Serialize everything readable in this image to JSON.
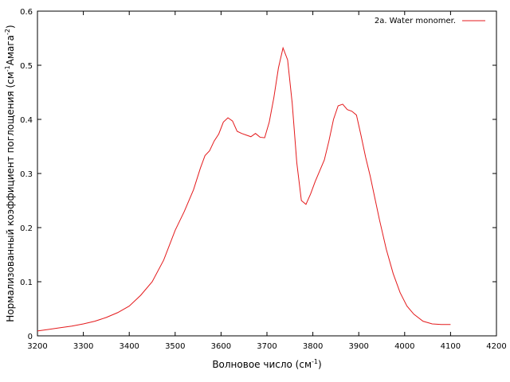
{
  "chart_data": {
    "type": "line",
    "xlabel": "Волновое число (см",
    "xlabel_sup": "-1",
    "xlabel_end": ")",
    "ylabel": "Нормализованный коэффициент поглощения (см",
    "ylabel_sup1": "-1",
    "ylabel_mid": "Амага",
    "ylabel_sup2": "-2",
    "ylabel_end": ")",
    "xlim": [
      3200,
      4200
    ],
    "ylim": [
      0,
      0.6
    ],
    "x_ticks": [
      "3200",
      "3300",
      "3400",
      "3500",
      "3600",
      "3700",
      "3800",
      "3900",
      "4000",
      "4100",
      "4200"
    ],
    "y_ticks": [
      "0",
      "0.1",
      "0.2",
      "0.3",
      "0.4",
      "0.5",
      "0.6"
    ],
    "grid": false,
    "legend_position": "top-right",
    "colors": {
      "series": "#e41a1c",
      "axis": "#000000"
    },
    "series": [
      {
        "name": "2a. Water monomer.",
        "x": [
          3200,
          3225,
          3250,
          3275,
          3300,
          3325,
          3350,
          3375,
          3400,
          3425,
          3450,
          3475,
          3500,
          3520,
          3540,
          3555,
          3565,
          3575,
          3585,
          3595,
          3605,
          3615,
          3625,
          3635,
          3645,
          3655,
          3665,
          3675,
          3685,
          3695,
          3705,
          3715,
          3725,
          3735,
          3745,
          3755,
          3765,
          3775,
          3785,
          3795,
          3805,
          3815,
          3825,
          3835,
          3845,
          3855,
          3865,
          3875,
          3885,
          3895,
          3905,
          3915,
          3925,
          3935,
          3945,
          3960,
          3975,
          3990,
          4005,
          4020,
          4040,
          4060,
          4080,
          4100
        ],
        "y": [
          0.009,
          0.012,
          0.015,
          0.018,
          0.022,
          0.027,
          0.034,
          0.043,
          0.055,
          0.075,
          0.1,
          0.14,
          0.195,
          0.23,
          0.27,
          0.31,
          0.333,
          0.342,
          0.36,
          0.373,
          0.395,
          0.403,
          0.397,
          0.378,
          0.374,
          0.371,
          0.368,
          0.374,
          0.367,
          0.366,
          0.395,
          0.44,
          0.495,
          0.532,
          0.51,
          0.43,
          0.32,
          0.25,
          0.243,
          0.262,
          0.285,
          0.305,
          0.325,
          0.36,
          0.4,
          0.425,
          0.428,
          0.418,
          0.415,
          0.408,
          0.37,
          0.33,
          0.295,
          0.255,
          0.215,
          0.16,
          0.115,
          0.08,
          0.055,
          0.04,
          0.027,
          0.022,
          0.021,
          0.021
        ]
      }
    ]
  }
}
